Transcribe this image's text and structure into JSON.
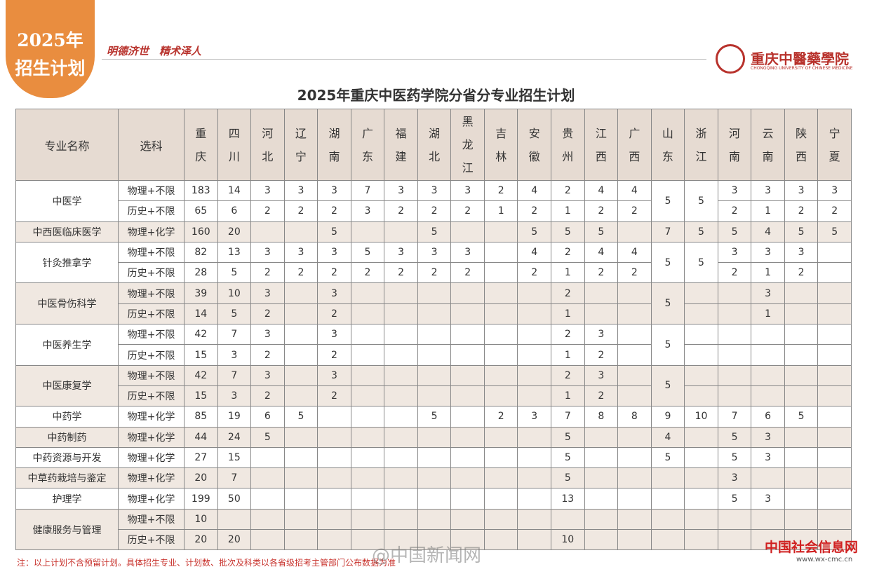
{
  "badge": {
    "year": "2025年",
    "label": "招生计划"
  },
  "slogan": "明德济世　精术泽人",
  "school": {
    "name": "重庆中醫藥學院",
    "english": "CHONGQING UNIVERSITY OF CHINESE MEDICINE"
  },
  "title": "2025年重庆中医药学院分省分专业招生计划",
  "table": {
    "header": {
      "major": "专业名称",
      "subject": "选科",
      "provinces": [
        "重庆",
        "四川",
        "河北",
        "辽宁",
        "湖南",
        "广东",
        "福建",
        "湖北",
        "黑龙江",
        "吉林",
        "安徽",
        "贵州",
        "江西",
        "广西",
        "山东",
        "浙江",
        "河南",
        "云南",
        "陕西",
        "宁夏"
      ]
    },
    "groups": [
      {
        "name": "中医学",
        "shared": [
          null,
          null,
          null,
          null,
          null,
          null,
          null,
          null,
          null,
          null,
          null,
          null,
          null,
          null,
          5,
          5,
          null,
          null,
          null,
          null
        ],
        "lines": [
          {
            "subject": "物理+不限",
            "values": [
              183,
              14,
              3,
              3,
              3,
              7,
              3,
              3,
              3,
              2,
              4,
              2,
              4,
              4,
              null,
              null,
              3,
              3,
              3,
              3
            ]
          },
          {
            "subject": "历史+不限",
            "values": [
              65,
              6,
              2,
              2,
              2,
              3,
              2,
              2,
              2,
              1,
              2,
              1,
              2,
              2,
              null,
              null,
              2,
              1,
              2,
              2
            ]
          }
        ]
      },
      {
        "name": "中西医临床医学",
        "lines": [
          {
            "subject": "物理+化学",
            "values": [
              160,
              20,
              null,
              null,
              5,
              null,
              null,
              5,
              null,
              null,
              5,
              5,
              5,
              null,
              7,
              5,
              5,
              4,
              5,
              5
            ]
          }
        ]
      },
      {
        "name": "针灸推拿学",
        "shared": [
          null,
          null,
          null,
          null,
          null,
          null,
          null,
          null,
          null,
          null,
          null,
          null,
          null,
          null,
          5,
          5,
          null,
          null,
          null,
          null
        ],
        "lines": [
          {
            "subject": "物理+不限",
            "values": [
              82,
              13,
              3,
              3,
              3,
              5,
              3,
              3,
              3,
              null,
              4,
              2,
              4,
              4,
              null,
              null,
              3,
              3,
              3,
              null
            ]
          },
          {
            "subject": "历史+不限",
            "values": [
              28,
              5,
              2,
              2,
              2,
              2,
              2,
              2,
              2,
              null,
              2,
              1,
              2,
              2,
              null,
              null,
              2,
              1,
              2,
              null
            ]
          }
        ]
      },
      {
        "name": "中医骨伤科学",
        "shared": [
          null,
          null,
          null,
          null,
          null,
          null,
          null,
          null,
          null,
          null,
          null,
          null,
          null,
          null,
          5,
          null,
          null,
          null,
          null,
          null
        ],
        "lines": [
          {
            "subject": "物理+不限",
            "values": [
              39,
              10,
              3,
              null,
              3,
              null,
              null,
              null,
              null,
              null,
              null,
              2,
              null,
              null,
              null,
              null,
              null,
              3,
              null,
              null
            ]
          },
          {
            "subject": "历史+不限",
            "values": [
              14,
              5,
              2,
              null,
              2,
              null,
              null,
              null,
              null,
              null,
              null,
              1,
              null,
              null,
              null,
              null,
              null,
              1,
              null,
              null
            ]
          }
        ]
      },
      {
        "name": "中医养生学",
        "shared": [
          null,
          null,
          null,
          null,
          null,
          null,
          null,
          null,
          null,
          null,
          null,
          null,
          null,
          null,
          5,
          null,
          null,
          null,
          null,
          null
        ],
        "lines": [
          {
            "subject": "物理+不限",
            "values": [
              42,
              7,
              3,
              null,
              3,
              null,
              null,
              null,
              null,
              null,
              null,
              2,
              3,
              null,
              null,
              null,
              null,
              null,
              null,
              null
            ]
          },
          {
            "subject": "历史+不限",
            "values": [
              15,
              3,
              2,
              null,
              2,
              null,
              null,
              null,
              null,
              null,
              null,
              1,
              2,
              null,
              null,
              null,
              null,
              null,
              null,
              null
            ]
          }
        ]
      },
      {
        "name": "中医康复学",
        "shared": [
          null,
          null,
          null,
          null,
          null,
          null,
          null,
          null,
          null,
          null,
          null,
          null,
          null,
          null,
          5,
          null,
          null,
          null,
          null,
          null
        ],
        "lines": [
          {
            "subject": "物理+不限",
            "values": [
              42,
              7,
              3,
              null,
              3,
              null,
              null,
              null,
              null,
              null,
              null,
              2,
              3,
              null,
              null,
              null,
              null,
              null,
              null,
              null
            ]
          },
          {
            "subject": "历史+不限",
            "values": [
              15,
              3,
              2,
              null,
              2,
              null,
              null,
              null,
              null,
              null,
              null,
              1,
              2,
              null,
              null,
              null,
              null,
              null,
              null,
              null
            ]
          }
        ]
      },
      {
        "name": "中药学",
        "lines": [
          {
            "subject": "物理+化学",
            "values": [
              85,
              19,
              6,
              5,
              null,
              null,
              null,
              5,
              null,
              2,
              3,
              7,
              8,
              8,
              9,
              10,
              7,
              6,
              5,
              null
            ]
          }
        ]
      },
      {
        "name": "中药制药",
        "lines": [
          {
            "subject": "物理+化学",
            "values": [
              44,
              24,
              5,
              null,
              null,
              null,
              null,
              null,
              null,
              null,
              null,
              5,
              null,
              null,
              4,
              null,
              5,
              3,
              null,
              null
            ]
          }
        ]
      },
      {
        "name": "中药资源与开发",
        "lines": [
          {
            "subject": "物理+化学",
            "values": [
              27,
              15,
              null,
              null,
              null,
              null,
              null,
              null,
              null,
              null,
              null,
              5,
              null,
              null,
              5,
              null,
              5,
              3,
              null,
              null
            ]
          }
        ]
      },
      {
        "name": "中草药栽培与鉴定",
        "lines": [
          {
            "subject": "物理+化学",
            "values": [
              20,
              7,
              null,
              null,
              null,
              null,
              null,
              null,
              null,
              null,
              null,
              5,
              null,
              null,
              null,
              null,
              3,
              null,
              null,
              null
            ]
          }
        ]
      },
      {
        "name": "护理学",
        "lines": [
          {
            "subject": "物理+化学",
            "values": [
              199,
              50,
              null,
              null,
              null,
              null,
              null,
              null,
              null,
              null,
              null,
              13,
              null,
              null,
              null,
              null,
              5,
              3,
              null,
              null
            ]
          }
        ]
      },
      {
        "name": "健康服务与管理",
        "lines": [
          {
            "subject": "物理+不限",
            "values": [
              10,
              null,
              null,
              null,
              null,
              null,
              null,
              null,
              null,
              null,
              null,
              null,
              null,
              null,
              null,
              null,
              null,
              null,
              null,
              null
            ]
          },
          {
            "subject": "历史+不限",
            "values": [
              20,
              20,
              null,
              null,
              null,
              null,
              null,
              null,
              null,
              null,
              null,
              10,
              null,
              null,
              null,
              null,
              null,
              null,
              null,
              null
            ]
          }
        ]
      }
    ]
  },
  "note": "注：以上计划不含预留计划。具体招生专业、计划数、批次及科类以各省级招考主管部门公布数据为准",
  "watermarks": {
    "weibo": "@中国新闻网",
    "site": "中国社会信息网",
    "url": "www.wx-cmc.cn"
  }
}
